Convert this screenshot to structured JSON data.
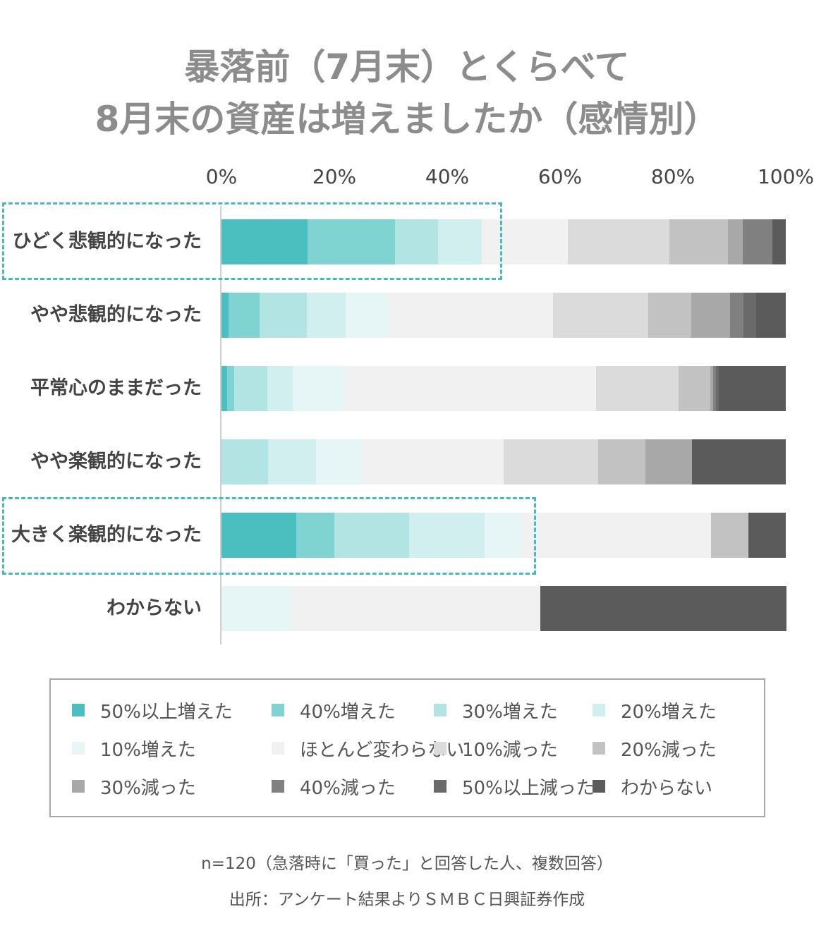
{
  "chart_data": {
    "type": "bar",
    "orientation": "horizontal",
    "stacked": "100%",
    "title": "暴落前（7月末）とくらべて\n8月末の資産は増えましたか（感情別）",
    "title_lines": [
      "暴落前（7月末）とくらべて",
      "8月末の資産は増えましたか（感情別）"
    ],
    "xlim": [
      0,
      100
    ],
    "xticks": [
      "0%",
      "20%",
      "40%",
      "60%",
      "80%",
      "100%"
    ],
    "categories": [
      "ひどく悲観的になった",
      "やや悲観的になった",
      "平常心のままだった",
      "やや楽観的になった",
      "大きく楽観的になった",
      "わからない"
    ],
    "series": [
      {
        "name": "50%以上増えた",
        "color": "#4bbfbf",
        "values": [
          15.3,
          1.3,
          1.0,
          0,
          13.3,
          0
        ]
      },
      {
        "name": "40%増えた",
        "color": "#7fd3d0",
        "values": [
          15.4,
          5.4,
          1.2,
          0,
          6.7,
          0
        ]
      },
      {
        "name": "30%増えた",
        "color": "#b1e4e2",
        "values": [
          7.7,
          8.4,
          5.9,
          8.3,
          13.3,
          0
        ]
      },
      {
        "name": "20%増えた",
        "color": "#d1efee",
        "values": [
          7.7,
          6.9,
          4.5,
          8.4,
          13.3,
          0
        ]
      },
      {
        "name": "10%増えた",
        "color": "#e6f5f6",
        "values": [
          0,
          7.5,
          9.3,
          8.3,
          6.7,
          12.4
        ]
      },
      {
        "name": "ほとんど変わらない",
        "color": "#f1f1f1",
        "values": [
          15.3,
          29.2,
          44.5,
          25.0,
          33.4,
          44.1
        ]
      },
      {
        "name": "10%減った",
        "color": "#dbdbdb",
        "values": [
          18.0,
          16.9,
          14.6,
          16.7,
          0,
          0
        ]
      },
      {
        "name": "20%減った",
        "color": "#c2c2c2",
        "values": [
          10.3,
          7.6,
          5.6,
          8.4,
          6.7,
          0
        ]
      },
      {
        "name": "30%減った",
        "color": "#a8a8a8",
        "values": [
          2.7,
          6.9,
          0.5,
          8.3,
          0,
          0
        ]
      },
      {
        "name": "40%減った",
        "color": "#808080",
        "values": [
          5.2,
          2.4,
          0.5,
          0,
          0,
          0
        ]
      },
      {
        "name": "50%以上減った",
        "color": "#6a6a6a",
        "values": [
          0,
          2.3,
          0.5,
          0,
          0,
          0
        ]
      },
      {
        "name": "わからない",
        "color": "#5b5b5b",
        "values": [
          2.4,
          5.2,
          11.9,
          16.6,
          6.6,
          43.5
        ]
      }
    ],
    "highlighted_rows": [
      "ひどく悲観的になった",
      "大きく楽観的になった"
    ],
    "grid": false,
    "legend_position": "bottom"
  },
  "footnote": "n=120（急落時に「買った」と回答した人、複数回答）",
  "source": "出所：アンケート結果よりＳＭＢＣ日興証券作成",
  "colors": {
    "title": "#8c8c8c",
    "highlight": "#45bcbc",
    "legend_border": "#a8a8a8"
  }
}
